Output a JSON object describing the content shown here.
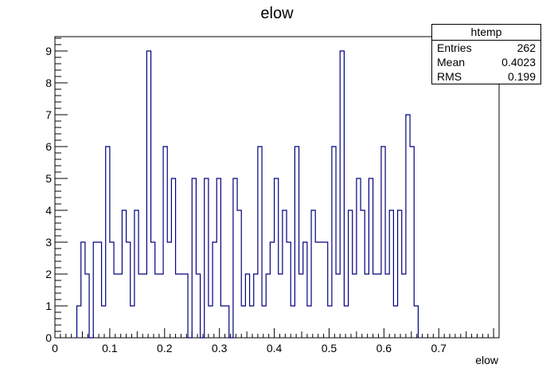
{
  "chart_data": {
    "type": "histogram",
    "title": "elow",
    "xlabel": "elow",
    "ylabel": "",
    "xlim": [
      0,
      0.81
    ],
    "ylim": [
      0,
      9.45
    ],
    "bin_edges_start": 0.04,
    "bin_width": 0.0075,
    "counts": [
      1,
      3,
      2,
      0,
      3,
      3,
      1,
      6,
      3,
      2,
      2,
      4,
      3,
      1,
      4,
      2,
      2,
      9,
      3,
      2,
      2,
      6,
      3,
      5,
      2,
      2,
      2,
      0,
      5,
      2,
      0,
      5,
      1,
      3,
      5,
      1,
      1,
      0,
      5,
      4,
      1,
      2,
      1,
      2,
      6,
      1,
      2,
      3,
      5,
      2,
      4,
      3,
      1,
      6,
      2,
      3,
      1,
      4,
      3,
      3,
      3,
      1,
      6,
      2,
      9,
      1,
      4,
      2,
      5,
      4,
      2,
      5,
      2,
      2,
      6,
      2,
      4,
      1,
      4,
      2,
      7,
      6,
      1
    ],
    "xticks": [
      0,
      0.1,
      0.2,
      0.3,
      0.4,
      0.5,
      0.6,
      0.7
    ],
    "xtick_labels": [
      "0",
      "0.1",
      "0.2",
      "0.3",
      "0.4",
      "0.5",
      "0.6",
      "0.7"
    ],
    "yticks": [
      0,
      1,
      2,
      3,
      4,
      5,
      6,
      7,
      8,
      9
    ],
    "ytick_labels": [
      "0",
      "1",
      "2",
      "3",
      "4",
      "5",
      "6",
      "7",
      "8",
      "9"
    ],
    "line_color": "#000080",
    "stats": {
      "name": "htemp",
      "entries_label": "Entries",
      "entries": "262",
      "mean_label": "Mean",
      "mean": "0.4023",
      "rms_label": "RMS",
      "rms": "0.199"
    }
  }
}
